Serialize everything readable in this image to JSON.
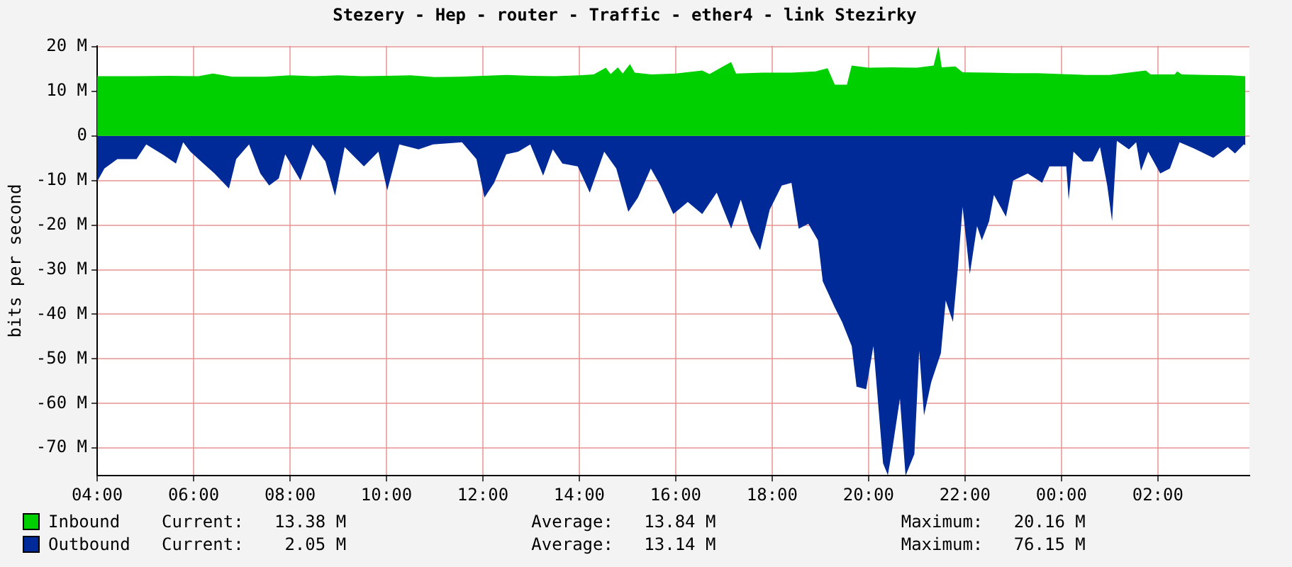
{
  "chart_data": {
    "type": "area",
    "title": "Stezery - Hep - router - Traffic - ether4 - link Stezirky",
    "ylabel": "bits per second",
    "xlim": [
      "--01-01T04:00",
      "--01-02T03:54"
    ],
    "xticks": [
      {
        "value": "--01-01T04:00",
        "label": "04:00"
      },
      {
        "value": "--01-01T06:00",
        "label": "06:00"
      },
      {
        "value": "--01-01T08:00",
        "label": "08:00"
      },
      {
        "value": "--01-01T10:00",
        "label": "10:00"
      },
      {
        "value": "--01-01T12:00",
        "label": "12:00"
      },
      {
        "value": "--01-01T14:00",
        "label": "14:00"
      },
      {
        "value": "--01-01T16:00",
        "label": "16:00"
      },
      {
        "value": "--01-01T18:00",
        "label": "18:00"
      },
      {
        "value": "--01-01T20:00",
        "label": "20:00"
      },
      {
        "value": "--01-01T22:00",
        "label": "22:00"
      },
      {
        "value": "--01-02T00:00",
        "label": "00:00"
      },
      {
        "value": "--01-02T02:00",
        "label": "02:00"
      }
    ],
    "ylim": [
      -76.2,
      20.2
    ],
    "yticks": [
      {
        "value": 20,
        "label": "20 M"
      },
      {
        "value": 10,
        "label": "10 M"
      },
      0,
      {
        "value": -10,
        "label": "-10 M"
      },
      {
        "value": -20,
        "label": "-20 M"
      },
      {
        "value": -30,
        "label": "-30 M"
      },
      {
        "value": -40,
        "label": "-40 M"
      },
      {
        "value": -50,
        "label": "-50 M"
      },
      {
        "value": -60,
        "label": "-60 M"
      },
      {
        "value": -70,
        "label": "-70 M"
      }
    ],
    "grid": true,
    "legend": "bottom",
    "series": [
      {
        "name": "Inbound",
        "color": "#00cf00",
        "x": [
          "--01-01T04:00",
          "--01-01T04:48",
          "--01-01T05:30",
          "--01-01T06:06",
          "--01-01T06:24",
          "--01-01T06:48",
          "--01-01T07:30",
          "--01-01T08:00",
          "--01-01T08:30",
          "--01-01T09:00",
          "--01-01T09:30",
          "--01-01T10:00",
          "--01-01T10:30",
          "--01-01T11:00",
          "--01-01T11:30",
          "--01-01T12:00",
          "--01-01T12:30",
          "--01-01T13:00",
          "--01-01T13:30",
          "--01-01T14:00",
          "--01-01T14:18",
          "--01-01T14:33",
          "--01-01T14:39",
          "--01-01T14:48",
          "--01-01T14:54",
          "--01-01T15:03",
          "--01-01T15:09",
          "--01-01T15:30",
          "--01-01T16:00",
          "--01-01T16:33",
          "--01-01T16:42",
          "--01-01T17:09",
          "--01-01T17:15",
          "--01-01T17:48",
          "--01-01T18:24",
          "--01-01T18:54",
          "--01-01T19:09",
          "--01-01T19:18",
          "--01-01T19:33",
          "--01-01T19:39",
          "--01-01T20:00",
          "--01-01T20:30",
          "--01-01T21:00",
          "--01-01T21:21",
          "--01-01T21:27",
          "--01-01T21:31",
          "--01-01T21:48",
          "--01-01T21:57",
          "--01-01T22:30",
          "--01-01T23:00",
          "--01-01T23:30",
          "--01-02T00:00",
          "--01-02T00:30",
          "--01-02T01:00",
          "--01-02T01:45",
          "--01-02T01:51",
          "--01-02T02:21",
          "--01-02T02:24",
          "--01-02T02:30",
          "--01-02T03:00",
          "--01-02T03:30",
          "--01-02T03:49"
        ],
        "values": [
          13.4,
          13.4,
          13.5,
          13.4,
          14.0,
          13.3,
          13.3,
          13.6,
          13.4,
          13.6,
          13.4,
          13.5,
          13.6,
          13.2,
          13.3,
          13.5,
          13.7,
          13.5,
          13.4,
          13.6,
          13.8,
          15.3,
          13.9,
          15.4,
          14.0,
          16.1,
          14.2,
          13.8,
          14.0,
          14.7,
          13.9,
          16.6,
          14.0,
          14.2,
          14.2,
          14.5,
          15.2,
          11.5,
          11.5,
          15.8,
          15.3,
          15.4,
          15.3,
          15.8,
          20.2,
          15.4,
          15.6,
          14.3,
          14.2,
          14.1,
          14.1,
          13.9,
          13.7,
          13.7,
          14.7,
          13.8,
          13.8,
          14.5,
          13.8,
          13.7,
          13.6,
          13.4
        ]
      },
      {
        "name": "Outbound",
        "color": "#002a97",
        "x": [
          "--01-01T04:00",
          "--01-01T04:09",
          "--01-01T04:25",
          "--01-01T04:49",
          "--01-01T05:01",
          "--01-01T05:23",
          "--01-01T05:38",
          "--01-01T05:47",
          "--01-01T05:56",
          "--01-01T06:11",
          "--01-01T06:26",
          "--01-01T06:44",
          "--01-01T06:53",
          "--01-01T07:09",
          "--01-01T07:23",
          "--01-01T07:34",
          "--01-01T07:46",
          "--01-01T07:54",
          "--01-01T08:13",
          "--01-01T08:28",
          "--01-01T08:44",
          "--01-01T08:56",
          "--01-01T09:08",
          "--01-01T09:32",
          "--01-01T09:50",
          "--01-01T10:01",
          "--01-01T10:16",
          "--01-01T10:40",
          "--01-01T10:58",
          "--01-01T11:34",
          "--01-01T11:52",
          "--01-01T12:02",
          "--01-01T12:14",
          "--01-01T12:29",
          "--01-01T12:44",
          "--01-01T12:59",
          "--01-01T13:15",
          "--01-01T13:27",
          "--01-01T13:39",
          "--01-01T13:58",
          "--01-01T14:13",
          "--01-01T14:31",
          "--01-01T14:46",
          "--01-01T15:01",
          "--01-01T15:13",
          "--01-01T15:29",
          "--01-01T15:41",
          "--01-01T15:57",
          "--01-01T16:15",
          "--01-01T16:33",
          "--01-01T16:51",
          "--01-01T17:09",
          "--01-01T17:21",
          "--01-01T17:33",
          "--01-01T17:45",
          "--01-01T17:57",
          "--01-01T18:12",
          "--01-01T18:24",
          "--01-01T18:33",
          "--01-01T18:45",
          "--01-01T18:57",
          "--01-01T19:03",
          "--01-01T19:18",
          "--01-01T19:27",
          "--01-01T19:39",
          "--01-01T19:45",
          "--01-01T19:57",
          "--01-01T20:06",
          "--01-01T20:18",
          "--01-01T20:24",
          "--01-01T20:30",
          "--01-01T20:39",
          "--01-01T20:46",
          "--01-01T20:57",
          "--01-01T21:03",
          "--01-01T21:09",
          "--01-01T21:18",
          "--01-01T21:30",
          "--01-01T21:36",
          "--01-01T21:45",
          "--01-01T21:51",
          "--01-01T21:57",
          "--01-01T22:06",
          "--01-01T22:15",
          "--01-01T22:21",
          "--01-01T22:30",
          "--01-01T22:36",
          "--01-01T22:51",
          "--01-01T23:00",
          "--01-01T23:18",
          "--01-01T23:36",
          "--01-01T23:45",
          "--01-02T00:06",
          "--01-02T00:09",
          "--01-02T00:15",
          "--01-02T00:27",
          "--01-02T00:39",
          "--01-02T00:48",
          "--01-02T00:57",
          "--01-02T01:03",
          "--01-02T01:09",
          "--01-02T01:24",
          "--01-02T01:33",
          "--01-02T01:39",
          "--01-02T01:48",
          "--01-02T02:03",
          "--01-02T02:15",
          "--01-02T02:27",
          "--01-02T02:45",
          "--01-02T03:09",
          "--01-02T03:27",
          "--01-02T03:36",
          "--01-02T03:47",
          "--01-02T03:49"
        ],
        "values": [
          -10.2,
          -7.3,
          -5.2,
          -5.2,
          -1.9,
          -4.3,
          -6.2,
          -1.4,
          -3.5,
          -6.0,
          -8.4,
          -11.8,
          -5.2,
          -1.9,
          -8.4,
          -11.1,
          -9.5,
          -4.1,
          -10.0,
          -1.9,
          -5.7,
          -13.4,
          -2.5,
          -6.8,
          -3.5,
          -12.2,
          -1.9,
          -3.0,
          -1.9,
          -1.4,
          -5.2,
          -13.8,
          -10.5,
          -4.1,
          -3.5,
          -1.9,
          -8.9,
          -3.0,
          -6.2,
          -6.8,
          -12.7,
          -3.5,
          -7.3,
          -17.0,
          -13.8,
          -7.3,
          -11.1,
          -17.5,
          -14.8,
          -17.5,
          -12.7,
          -20.8,
          -14.3,
          -21.3,
          -25.6,
          -16.5,
          -11.1,
          -10.5,
          -20.8,
          -19.7,
          -23.4,
          -32.6,
          -38.5,
          -41.7,
          -47.1,
          -56.2,
          -56.8,
          -47.1,
          -73.4,
          -76.1,
          -69.7,
          -58.9,
          -76.2,
          -71.3,
          -48.2,
          -62.7,
          -55.2,
          -48.7,
          -36.9,
          -41.7,
          -29.9,
          -15.9,
          -31.0,
          -20.2,
          -23.4,
          -19.1,
          -13.2,
          -18.1,
          -10.0,
          -8.4,
          -10.5,
          -6.8,
          -6.8,
          -14.3,
          -3.5,
          -5.7,
          -5.7,
          -2.5,
          -11.1,
          -19.1,
          -1.1,
          -3.0,
          -1.4,
          -7.8,
          -3.5,
          -8.4,
          -7.3,
          -1.4,
          -2.8,
          -4.9,
          -2.5,
          -3.9,
          -1.9,
          -2.1
        ]
      }
    ],
    "annotations": [
      "Current:   13.38 M",
      "Average:   13.84 M",
      "Maximum:   20.16 M",
      "Current:    2.05 M",
      "Average:   13.14 M",
      "Maximum:   76.15 M"
    ]
  }
}
